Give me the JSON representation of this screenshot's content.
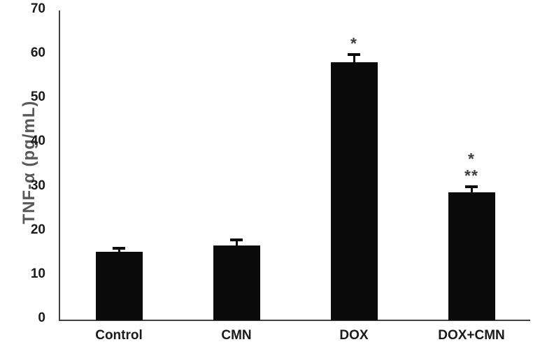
{
  "page": {
    "background": "#ffffff"
  },
  "chart_data": {
    "type": "bar",
    "title": "",
    "ylabel": "TNF-α (pg/mL)",
    "xlabel": "",
    "categories": [
      "Control",
      "CMN",
      "DOX",
      "DOX+CMN"
    ],
    "values": [
      15.5,
      17.0,
      58.5,
      29.0
    ],
    "error_bars": [
      1.2,
      1.5,
      2.0,
      1.5
    ],
    "significance_annotations": [
      [],
      [],
      [
        "*"
      ],
      [
        "*",
        "**"
      ]
    ],
    "ylim": [
      0,
      70
    ],
    "yticks": [
      0,
      10,
      20,
      30,
      40,
      50,
      60,
      70
    ],
    "grid": false,
    "legend": null,
    "bar_color": "#0a0a0a",
    "axis_color": "#404040",
    "tick_label_color": "#1a1a1a",
    "ylabel_color": "#595959",
    "annotation_color": "#3f3f3f"
  }
}
